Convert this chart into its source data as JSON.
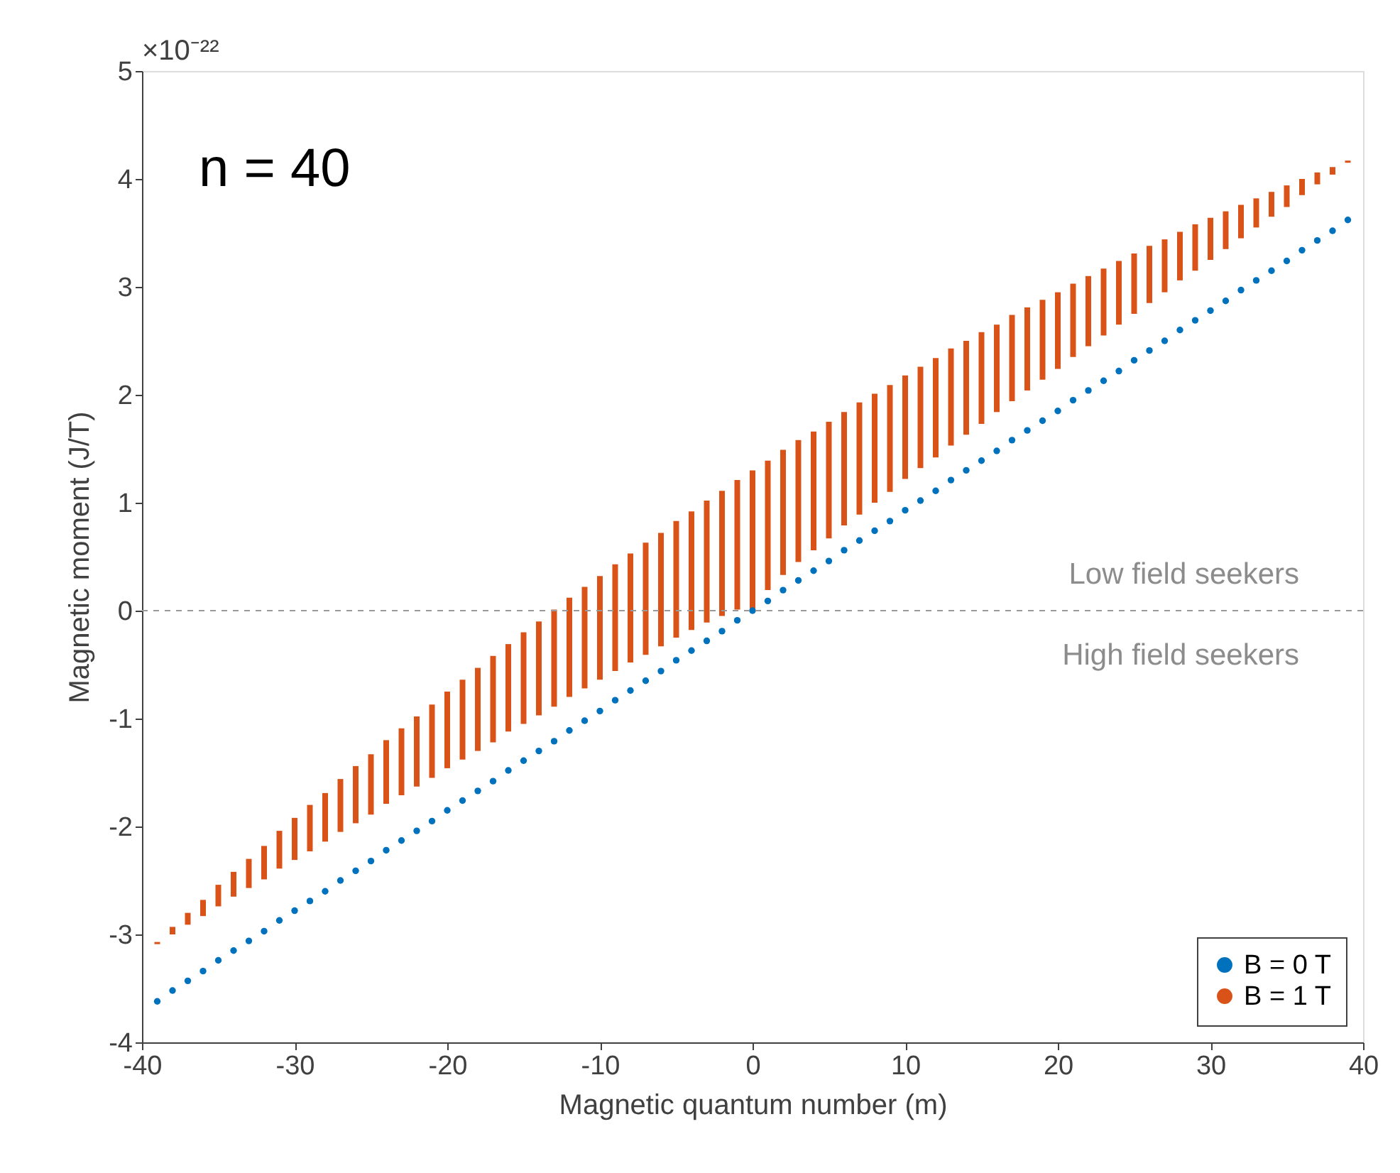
{
  "chart_data": {
    "type": "scatter",
    "xlabel": "Magnetic quantum number (m)",
    "ylabel": "Magnetic moment (J/T)",
    "annotations": [
      "×10⁻²²",
      "n = 40",
      "Low field seekers",
      "High field seekers"
    ],
    "x": [
      -39,
      -38,
      -37,
      -36,
      -35,
      -34,
      -33,
      -32,
      -31,
      -30,
      -29,
      -28,
      -27,
      -26,
      -25,
      -24,
      -23,
      -22,
      -21,
      -20,
      -19,
      -18,
      -17,
      -16,
      -15,
      -14,
      -13,
      -12,
      -11,
      -10,
      -9,
      -8,
      -7,
      -6,
      -5,
      -4,
      -3,
      -2,
      -1,
      0,
      1,
      2,
      3,
      4,
      5,
      6,
      7,
      8,
      9,
      10,
      11,
      12,
      13,
      14,
      15,
      16,
      17,
      18,
      19,
      20,
      21,
      22,
      23,
      24,
      25,
      26,
      27,
      28,
      29,
      30,
      31,
      32,
      33,
      34,
      35,
      36,
      37,
      38,
      39
    ],
    "series": [
      {
        "name": "B = 0 T",
        "color": "#0072bd",
        "values": [
          -3.62,
          -3.52,
          -3.43,
          -3.34,
          -3.24,
          -3.15,
          -3.06,
          -2.97,
          -2.87,
          -2.78,
          -2.69,
          -2.6,
          -2.5,
          -2.41,
          -2.32,
          -2.22,
          -2.13,
          -2.04,
          -1.95,
          -1.85,
          -1.76,
          -1.67,
          -1.58,
          -1.48,
          -1.39,
          -1.3,
          -1.21,
          -1.11,
          -1.02,
          -0.93,
          -0.83,
          -0.74,
          -0.65,
          -0.56,
          -0.46,
          -0.37,
          -0.28,
          -0.19,
          -0.09,
          0,
          0.09,
          0.19,
          0.28,
          0.37,
          0.46,
          0.56,
          0.65,
          0.74,
          0.83,
          0.93,
          1.02,
          1.11,
          1.21,
          1.3,
          1.39,
          1.48,
          1.58,
          1.67,
          1.76,
          1.85,
          1.95,
          2.04,
          2.13,
          2.22,
          2.32,
          2.41,
          2.5,
          2.6,
          2.69,
          2.78,
          2.87,
          2.97,
          3.06,
          3.15,
          3.24,
          3.34,
          3.43,
          3.52,
          3.62
        ]
      },
      {
        "name": "B = 1 T",
        "color": "#d95319",
        "type": "bar",
        "base": [
          -3.09,
          -3.0,
          -2.91,
          -2.83,
          -2.74,
          -2.65,
          -2.57,
          -2.49,
          -2.39,
          -2.31,
          -2.23,
          -2.14,
          -2.05,
          -1.97,
          -1.89,
          -1.79,
          -1.71,
          -1.63,
          -1.55,
          -1.46,
          -1.38,
          -1.3,
          -1.22,
          -1.12,
          -1.05,
          -0.97,
          -0.89,
          -0.8,
          -0.72,
          -0.64,
          -0.56,
          -0.48,
          -0.41,
          -0.33,
          -0.25,
          -0.18,
          -0.11,
          -0.05,
          0.01,
          0,
          0.19,
          0.33,
          0.45,
          0.56,
          0.67,
          0.79,
          0.89,
          1.0,
          1.1,
          1.22,
          1.32,
          1.42,
          1.53,
          1.63,
          1.73,
          1.84,
          1.94,
          2.04,
          2.14,
          2.24,
          2.35,
          2.45,
          2.55,
          2.65,
          2.75,
          2.85,
          2.95,
          3.06,
          3.15,
          3.25,
          3.35,
          3.45,
          3.55,
          3.65,
          3.74,
          3.85,
          3.95,
          4.04,
          4.15
        ],
        "values": [
          0.02,
          0.07,
          0.11,
          0.15,
          0.2,
          0.23,
          0.27,
          0.31,
          0.35,
          0.39,
          0.43,
          0.45,
          0.49,
          0.53,
          0.56,
          0.59,
          0.62,
          0.65,
          0.68,
          0.71,
          0.74,
          0.77,
          0.8,
          0.81,
          0.85,
          0.87,
          0.9,
          0.92,
          0.94,
          0.96,
          0.99,
          1.01,
          1.04,
          1.05,
          1.08,
          1.1,
          1.13,
          1.16,
          1.2,
          1.3,
          1.2,
          1.16,
          1.13,
          1.1,
          1.08,
          1.05,
          1.04,
          1.01,
          0.99,
          0.96,
          0.94,
          0.92,
          0.9,
          0.87,
          0.85,
          0.81,
          0.8,
          0.77,
          0.74,
          0.71,
          0.68,
          0.65,
          0.62,
          0.59,
          0.56,
          0.53,
          0.49,
          0.45,
          0.43,
          0.39,
          0.35,
          0.31,
          0.27,
          0.23,
          0.2,
          0.15,
          0.11,
          0.07,
          0.02
        ]
      }
    ],
    "xlim": [
      -40,
      40
    ],
    "xticks": [
      -40,
      -30,
      -20,
      -10,
      0,
      10,
      20,
      30,
      40
    ],
    "ylim": [
      -4,
      5
    ],
    "yticks": [
      -4,
      -3,
      -2,
      -1,
      0,
      1,
      2,
      3,
      4,
      5
    ],
    "ref_lines": [
      {
        "axis": "y",
        "value": 0,
        "color": "#999999",
        "line_style": "dashed"
      }
    ],
    "grid": false,
    "legend": "bottom right",
    "marker": "circle"
  }
}
